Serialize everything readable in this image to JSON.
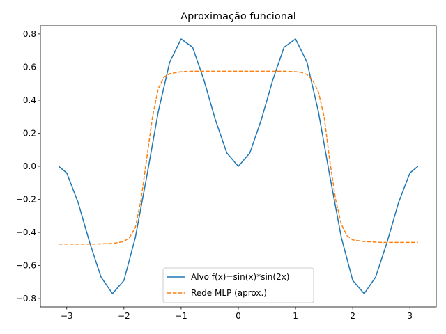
{
  "chart_data": {
    "type": "line",
    "title": "Aproximação funcional",
    "xlabel": "",
    "ylabel": "",
    "xlim": [
      -3.46,
      3.46
    ],
    "ylim": [
      -0.85,
      0.85
    ],
    "xticks": [
      -3,
      -2,
      -1,
      0,
      1,
      2,
      3
    ],
    "xtick_labels": [
      "−3",
      "−2",
      "−1",
      "0",
      "1",
      "2",
      "3"
    ],
    "yticks": [
      -0.8,
      -0.6,
      -0.4,
      -0.2,
      0.0,
      0.2,
      0.4,
      0.6,
      0.8
    ],
    "ytick_labels": [
      "−0.8",
      "−0.6",
      "−0.4",
      "−0.2",
      "0.0",
      "0.2",
      "0.4",
      "0.6",
      "0.8"
    ],
    "grid": false,
    "legend_position": "bottom-center",
    "series": [
      {
        "name": "Alvo f(x)=sin(x)*sin(2x)",
        "color": "#1f77b4",
        "style": "solid",
        "x": [
          -3.14,
          -3.0,
          -2.8,
          -2.6,
          -2.4,
          -2.2,
          -2.0,
          -1.8,
          -1.6,
          -1.4,
          -1.2,
          -1.0,
          -0.8,
          -0.6,
          -0.4,
          -0.2,
          0.0,
          0.2,
          0.4,
          0.6,
          0.8,
          1.0,
          1.2,
          1.4,
          1.6,
          1.8,
          2.0,
          2.2,
          2.4,
          2.6,
          2.8,
          3.0,
          3.14
        ],
        "y": [
          0.0,
          -0.04,
          -0.22,
          -0.46,
          -0.67,
          -0.77,
          -0.69,
          -0.43,
          -0.06,
          0.33,
          0.63,
          0.77,
          0.72,
          0.52,
          0.28,
          0.08,
          0.0,
          0.08,
          0.28,
          0.52,
          0.72,
          0.77,
          0.63,
          0.33,
          -0.06,
          -0.43,
          -0.69,
          -0.77,
          -0.67,
          -0.46,
          -0.22,
          -0.04,
          0.0
        ]
      },
      {
        "name": "Rede MLP (aprox.)",
        "color": "#ff7f0e",
        "style": "dashed",
        "x": [
          -3.14,
          -2.8,
          -2.5,
          -2.2,
          -2.0,
          -1.9,
          -1.8,
          -1.7,
          -1.6,
          -1.5,
          -1.4,
          -1.3,
          -1.2,
          -1.0,
          -0.8,
          -0.5,
          0.0,
          0.5,
          0.8,
          1.0,
          1.1,
          1.2,
          1.3,
          1.4,
          1.5,
          1.6,
          1.7,
          1.8,
          1.9,
          2.0,
          2.2,
          2.5,
          2.8,
          3.14
        ],
        "y": [
          -0.47,
          -0.47,
          -0.47,
          -0.467,
          -0.455,
          -0.43,
          -0.37,
          -0.2,
          0.05,
          0.3,
          0.47,
          0.54,
          0.56,
          0.572,
          0.575,
          0.575,
          0.575,
          0.575,
          0.575,
          0.572,
          0.568,
          0.555,
          0.52,
          0.45,
          0.3,
          0.03,
          -0.2,
          -0.35,
          -0.42,
          -0.445,
          -0.455,
          -0.46,
          -0.46,
          -0.46
        ]
      }
    ]
  }
}
